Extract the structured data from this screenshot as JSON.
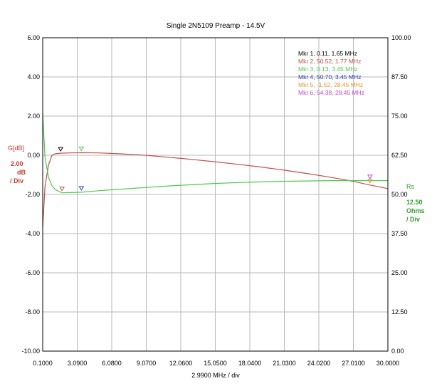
{
  "chart_data": {
    "type": "line",
    "title": "Single 2N5109 Preamp - 14.5V",
    "xlabel": "2.9900 MHz / div",
    "xlim": [
      0.1,
      30.0
    ],
    "x_ticks": [
      "0.1000",
      "3.0900",
      "6.0800",
      "9.0700",
      "12.0600",
      "15.0500",
      "18.0400",
      "21.0300",
      "24.0200",
      "27.0100",
      "30.0000"
    ],
    "left_axis": {
      "label": "G[dB]",
      "scale_text": [
        "2.00",
        "dB",
        "/ Div"
      ],
      "ylim": [
        -10.0,
        6.0
      ],
      "ticks": [
        "6.00",
        "4.00",
        "2.00",
        "0.00",
        "-2.00",
        "-4.00",
        "-6.00",
        "-8.00",
        "-10.00"
      ]
    },
    "right_axis": {
      "label": "Rs",
      "scale_text": [
        "12.50",
        "Ohms",
        "/ Div"
      ],
      "ylim": [
        0.0,
        100.0
      ],
      "ticks": [
        "100.00",
        "87.50",
        "75.00",
        "62.50",
        "50.00",
        "37.50",
        "25.00",
        "12.50",
        "0.00"
      ]
    },
    "grid": true,
    "series": [
      {
        "name": "G[dB]",
        "axis": "left",
        "color": "#c0504d",
        "x": [
          0.1,
          0.3,
          0.6,
          0.9,
          1.2,
          1.77,
          2.5,
          3.45,
          5.0,
          7.0,
          9.0,
          11.0,
          13.0,
          15.0,
          17.0,
          19.0,
          21.0,
          23.0,
          25.0,
          27.0,
          28.45,
          30.0
        ],
        "values": [
          -3.7,
          -1.6,
          -0.5,
          0.0,
          0.08,
          0.11,
          0.12,
          0.13,
          0.12,
          0.07,
          0.0,
          -0.1,
          -0.21,
          -0.33,
          -0.46,
          -0.6,
          -0.76,
          -0.93,
          -1.12,
          -1.33,
          -1.52,
          -1.7
        ]
      },
      {
        "name": "Rs",
        "axis": "right",
        "color": "#4cc94c",
        "x": [
          0.1,
          0.3,
          0.6,
          0.9,
          1.2,
          1.77,
          2.5,
          3.45,
          5.0,
          7.0,
          9.0,
          11.0,
          13.0,
          15.0,
          17.0,
          19.0,
          21.0,
          23.0,
          25.0,
          27.0,
          28.45,
          30.0
        ],
        "values": [
          76.0,
          62.0,
          55.5,
          52.8,
          51.5,
          50.52,
          50.6,
          50.7,
          51.2,
          51.7,
          52.2,
          52.7,
          53.1,
          53.5,
          53.8,
          54.0,
          54.2,
          54.3,
          54.4,
          54.4,
          54.38,
          54.4
        ]
      }
    ],
    "markers": [
      {
        "label": "Mkr 1, 0.11, 1.65 MHz",
        "color": "#000000",
        "x": 1.65,
        "y": 0.11,
        "axis": "left"
      },
      {
        "label": "Mkr 2, 50.52, 1.77 MHz",
        "color": "#c0504d",
        "x": 1.77,
        "y": 50.52,
        "axis": "right"
      },
      {
        "label": "Mkr 3, 0.13, 3.45 MHz",
        "color": "#4cc94c",
        "x": 3.45,
        "y": 0.13,
        "axis": "left"
      },
      {
        "label": "Mkr 4, 50.70, 3.45 MHz",
        "color": "#2f3fbf",
        "x": 3.45,
        "y": 50.7,
        "axis": "right"
      },
      {
        "label": "Mkr 5, -1.52, 28.45 MHz",
        "color": "#e39a2d",
        "x": 28.45,
        "y": -1.52,
        "axis": "left"
      },
      {
        "label": "Mkr 6, 54.38, 28.45 MHz",
        "color": "#cc44cc",
        "x": 28.45,
        "y": 54.38,
        "axis": "right"
      }
    ]
  }
}
